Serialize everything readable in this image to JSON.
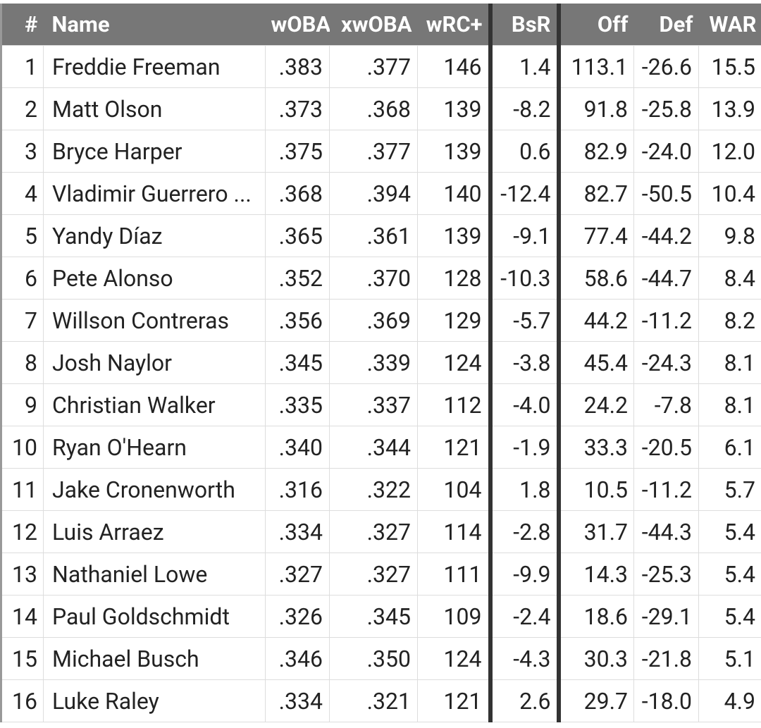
{
  "table": {
    "header": [
      "#",
      "Name",
      "wOBA",
      "xwOBA",
      "wRC+",
      "BsR",
      "Off",
      "Def",
      "WAR"
    ],
    "rows": [
      [
        "1",
        "Freddie Freeman",
        ".383",
        ".377",
        "146",
        "1.4",
        "113.1",
        "-26.6",
        "15.5"
      ],
      [
        "2",
        "Matt Olson",
        ".373",
        ".368",
        "139",
        "-8.2",
        "91.8",
        "-25.8",
        "13.9"
      ],
      [
        "3",
        "Bryce Harper",
        ".375",
        ".377",
        "139",
        "0.6",
        "82.9",
        "-24.0",
        "12.0"
      ],
      [
        "4",
        "Vladimir Guerrero ...",
        ".368",
        ".394",
        "140",
        "-12.4",
        "82.7",
        "-50.5",
        "10.4"
      ],
      [
        "5",
        "Yandy Díaz",
        ".365",
        ".361",
        "139",
        "-9.1",
        "77.4",
        "-44.2",
        "9.8"
      ],
      [
        "6",
        "Pete Alonso",
        ".352",
        ".370",
        "128",
        "-10.3",
        "58.6",
        "-44.7",
        "8.4"
      ],
      [
        "7",
        "Willson Contreras",
        ".356",
        ".369",
        "129",
        "-5.7",
        "44.2",
        "-11.2",
        "8.2"
      ],
      [
        "8",
        "Josh Naylor",
        ".345",
        ".339",
        "124",
        "-3.8",
        "45.4",
        "-24.3",
        "8.1"
      ],
      [
        "9",
        "Christian Walker",
        ".335",
        ".337",
        "112",
        "-4.0",
        "24.2",
        "-7.8",
        "8.1"
      ],
      [
        "10",
        "Ryan O'Hearn",
        ".340",
        ".344",
        "121",
        "-1.9",
        "33.3",
        "-20.5",
        "6.1"
      ],
      [
        "11",
        "Jake Cronenworth",
        ".316",
        ".322",
        "104",
        "1.8",
        "10.5",
        "-11.2",
        "5.7"
      ],
      [
        "12",
        "Luis Arraez",
        ".334",
        ".327",
        "114",
        "-2.8",
        "31.7",
        "-44.3",
        "5.4"
      ],
      [
        "13",
        "Nathaniel Lowe",
        ".327",
        ".327",
        "111",
        "-9.9",
        "14.3",
        "-25.3",
        "5.4"
      ],
      [
        "14",
        "Paul Goldschmidt",
        ".326",
        ".345",
        "109",
        "-2.4",
        "18.6",
        "-29.1",
        "5.4"
      ],
      [
        "15",
        "Michael Busch",
        ".346",
        ".350",
        "124",
        "-4.3",
        "30.3",
        "-21.8",
        "5.1"
      ],
      [
        "16",
        "Luke Raley",
        ".334",
        ".321",
        "121",
        "2.6",
        "29.7",
        "-18.0",
        "4.9"
      ]
    ]
  }
}
